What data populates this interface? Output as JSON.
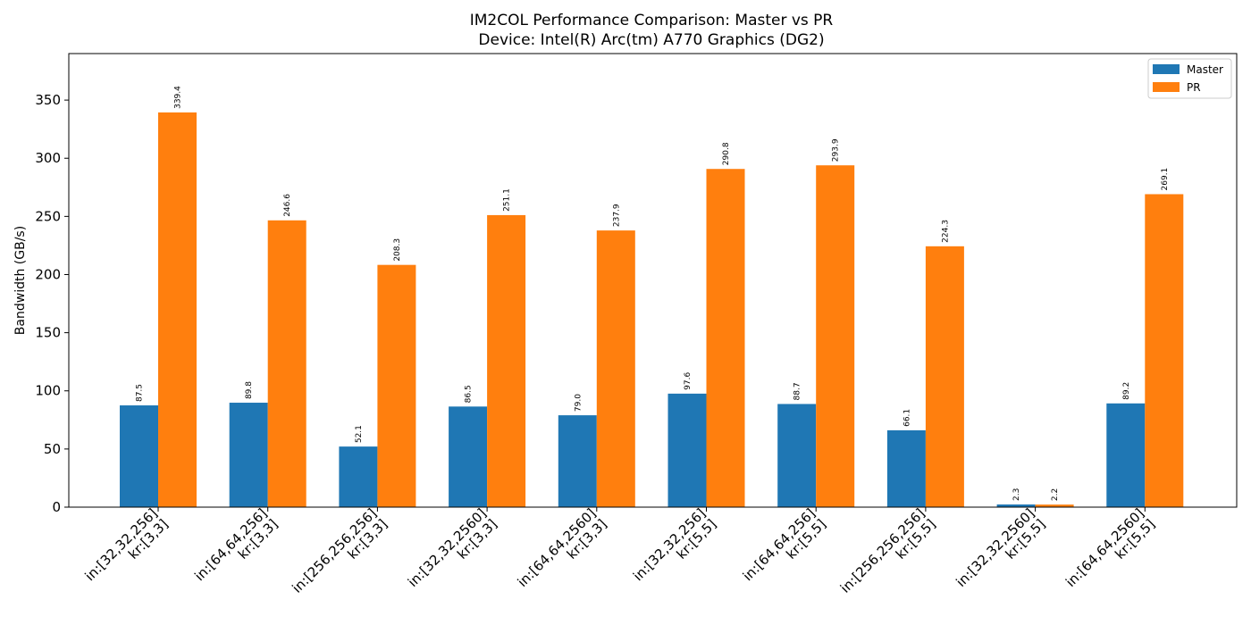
{
  "chart_data": {
    "type": "bar",
    "title": "IM2COL Performance Comparison: Master vs PR",
    "subtitle": "Device: Intel(R) Arc(tm) A770 Graphics (DG2)",
    "xlabel": "",
    "ylabel": "Bandwidth (GB/s)",
    "ylim": [
      0,
      390
    ],
    "yticks": [
      0,
      50,
      100,
      150,
      200,
      250,
      300,
      350
    ],
    "categories": [
      [
        "in:[32,32,256]",
        "kr:[3,3]"
      ],
      [
        "in:[64,64,256]",
        "kr:[3,3]"
      ],
      [
        "in:[256,256,256]",
        "kr:[3,3]"
      ],
      [
        "in:[32,32,2560]",
        "kr:[3,3]"
      ],
      [
        "in:[64,64,2560]",
        "kr:[3,3]"
      ],
      [
        "in:[32,32,256]",
        "kr:[5,5]"
      ],
      [
        "in:[64,64,256]",
        "kr:[5,5]"
      ],
      [
        "in:[256,256,256]",
        "kr:[5,5]"
      ],
      [
        "in:[32,32,2560]",
        "kr:[5,5]"
      ],
      [
        "in:[64,64,2560]",
        "kr:[5,5]"
      ]
    ],
    "series": [
      {
        "name": "Master",
        "color": "#1f77b4",
        "values": [
          87.5,
          89.8,
          52.1,
          86.5,
          79.0,
          97.6,
          88.7,
          66.1,
          2.3,
          89.2
        ]
      },
      {
        "name": "PR",
        "color": "#ff7f0e",
        "values": [
          339.4,
          246.6,
          208.3,
          251.1,
          237.9,
          290.8,
          293.9,
          224.3,
          2.2,
          269.1
        ]
      }
    ],
    "legend_position": "top-right",
    "grid": false
  }
}
